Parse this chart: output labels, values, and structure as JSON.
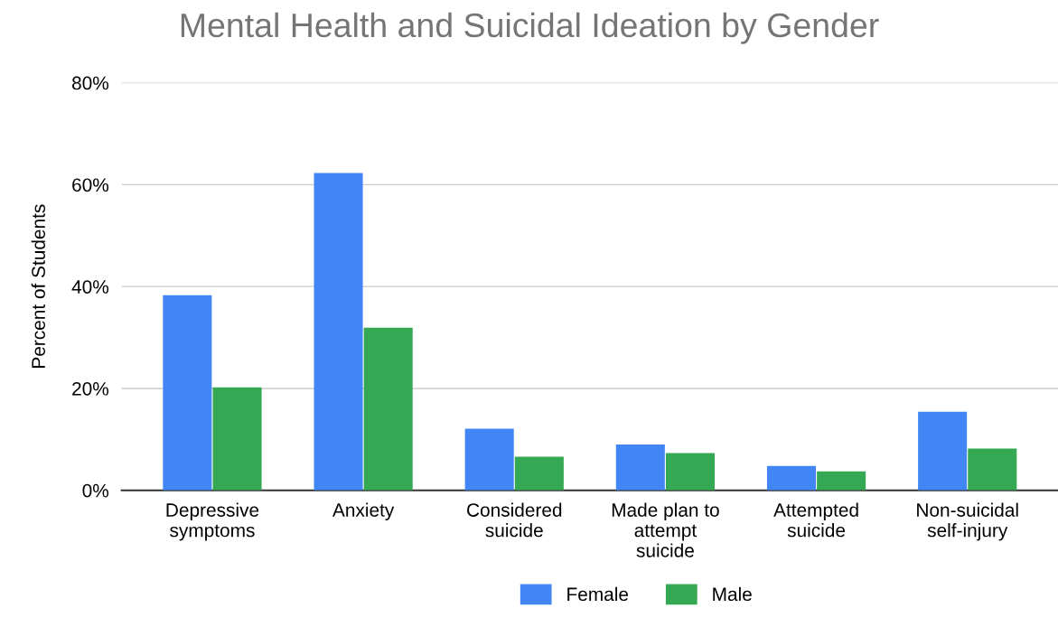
{
  "chart_data": {
    "type": "bar",
    "title": "Mental Health and Suicidal Ideation by Gender",
    "ylabel": "Percent of Students",
    "categories": [
      "Depressive\nsymptoms",
      "Anxiety",
      "Considered\nsuicide",
      "Made plan to\nattempt\nsuicide",
      "Attempted\nsuicide",
      "Non-suicidal\nself-injury"
    ],
    "series": [
      {
        "name": "Female",
        "color": "#4285f4",
        "values": [
          38.3,
          62.3,
          12.1,
          9.0,
          4.8,
          15.4
        ]
      },
      {
        "name": "Male",
        "color": "#34a853",
        "values": [
          20.2,
          31.9,
          6.6,
          7.3,
          3.7,
          8.2
        ]
      }
    ],
    "ylim": [
      0,
      80
    ],
    "yticks": [
      {
        "value": 0,
        "label": "0%"
      },
      {
        "value": 20,
        "label": "20%"
      },
      {
        "value": 40,
        "label": "40%"
      },
      {
        "value": 60,
        "label": "60%"
      },
      {
        "value": 80,
        "label": "80%"
      }
    ],
    "grid": "y",
    "legend": "bottom"
  }
}
